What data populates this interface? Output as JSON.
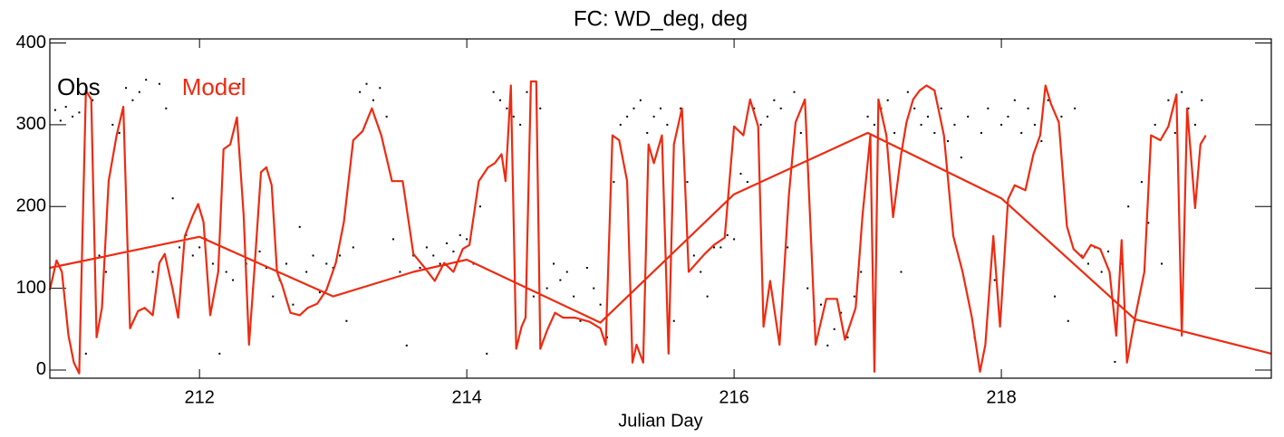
{
  "chart_data": {
    "type": "line",
    "title": "FC: WD_deg, deg",
    "x_label": "Julian Day",
    "xlim": [
      210.88,
      220.02
    ],
    "ylim": [
      -10,
      405
    ],
    "xticks": [
      212,
      214,
      216,
      218
    ],
    "yticks": [
      0,
      100,
      200,
      300,
      400
    ],
    "legend": "upper left",
    "series": [
      {
        "name": "Obs",
        "type": "scatter",
        "color": "#000000",
        "x": [
          210.92,
          210.96,
          211.0,
          211.05,
          211.1,
          211.15,
          211.2,
          211.25,
          211.3,
          211.35,
          211.4,
          211.45,
          211.5,
          211.55,
          211.6,
          211.65,
          211.7,
          211.75,
          211.8,
          211.85,
          211.9,
          211.95,
          212.0,
          212.05,
          212.1,
          212.15,
          212.2,
          212.25,
          212.3,
          212.35,
          212.4,
          212.45,
          212.5,
          212.55,
          212.6,
          212.65,
          212.7,
          212.75,
          212.8,
          212.85,
          212.9,
          212.95,
          213.0,
          213.05,
          213.1,
          213.15,
          213.2,
          213.25,
          213.3,
          213.35,
          213.4,
          213.45,
          213.5,
          213.55,
          213.6,
          213.65,
          213.7,
          213.75,
          213.8,
          213.85,
          213.9,
          213.95,
          214.0,
          214.05,
          214.1,
          214.15,
          214.2,
          214.25,
          214.3,
          214.35,
          214.4,
          214.45,
          214.5,
          214.55,
          214.6,
          214.65,
          214.7,
          214.75,
          214.8,
          214.85,
          214.9,
          214.95,
          215.0,
          215.05,
          215.1,
          215.15,
          215.2,
          215.25,
          215.3,
          215.35,
          215.4,
          215.45,
          215.5,
          215.55,
          215.6,
          215.65,
          215.7,
          215.75,
          215.8,
          215.85,
          215.9,
          215.95,
          216.0,
          216.05,
          216.1,
          216.15,
          216.2,
          216.25,
          216.3,
          216.35,
          216.4,
          216.45,
          216.5,
          216.55,
          216.6,
          216.65,
          216.7,
          216.75,
          216.8,
          216.85,
          216.9,
          216.95,
          217.0,
          217.05,
          217.1,
          217.15,
          217.2,
          217.25,
          217.3,
          217.35,
          217.4,
          217.45,
          217.5,
          217.55,
          217.6,
          217.65,
          217.7,
          217.75,
          217.8,
          217.85,
          217.9,
          217.95,
          218.0,
          218.05,
          218.1,
          218.15,
          218.2,
          218.25,
          218.3,
          218.35,
          218.4,
          218.45,
          218.5,
          218.55,
          218.6,
          218.65,
          218.7,
          218.75,
          218.8,
          218.85,
          218.9,
          218.95,
          219.0,
          219.05,
          219.1,
          219.15,
          219.2,
          219.25,
          219.3,
          219.35,
          219.4,
          219.45,
          219.5
        ],
        "values": [
          318,
          305,
          322,
          310,
          315,
          20,
          330,
          140,
          120,
          300,
          290,
          345,
          330,
          340,
          355,
          120,
          350,
          320,
          210,
          150,
          165,
          140,
          150,
          160,
          130,
          20,
          120,
          110,
          350,
          130,
          100,
          145,
          125,
          90,
          110,
          130,
          80,
          175,
          120,
          140,
          95,
          130,
          125,
          140,
          60,
          150,
          340,
          350,
          330,
          345,
          310,
          160,
          120,
          30,
          140,
          125,
          150,
          140,
          130,
          155,
          145,
          165,
          160,
          130,
          200,
          20,
          340,
          330,
          320,
          310,
          300,
          340,
          90,
          320,
          100,
          130,
          110,
          120,
          90,
          60,
          125,
          100,
          80,
          40,
          230,
          300,
          310,
          320,
          330,
          290,
          310,
          320,
          300,
          60,
          320,
          230,
          140,
          120,
          90,
          150,
          150,
          165,
          160,
          240,
          230,
          320,
          300,
          310,
          330,
          320,
          150,
          340,
          290,
          100,
          60,
          80,
          30,
          50,
          70,
          40,
          90,
          120,
          310,
          300,
          320,
          330,
          290,
          120,
          340,
          320,
          300,
          310,
          290,
          320,
          280,
          300,
          260,
          310,
          40,
          290,
          320,
          110,
          300,
          310,
          330,
          290,
          320,
          300,
          280,
          330,
          90,
          310,
          60,
          320,
          140,
          130,
          150,
          120,
          145,
          10,
          130,
          200,
          60,
          230,
          180,
          300,
          130,
          330,
          290,
          340,
          320,
          300,
          330
        ]
      },
      {
        "name": "Model",
        "type": "line",
        "color": "#ee2a10",
        "x": [
          210.88,
          210.93,
          210.97,
          211.02,
          211.06,
          211.1,
          211.15,
          211.19,
          211.23,
          211.27,
          211.32,
          211.38,
          211.43,
          211.48,
          211.54,
          211.59,
          211.65,
          211.7,
          211.74,
          211.8,
          211.84,
          211.89,
          211.95,
          211.99,
          212.03,
          212.08,
          212.14,
          212.18,
          212.23,
          212.28,
          212.33,
          212.37,
          212.41,
          212.46,
          212.5,
          212.54,
          212.58,
          212.62,
          212.68,
          212.75,
          212.81,
          212.88,
          212.95,
          213.02,
          213.08,
          213.15,
          213.22,
          213.29,
          213.36,
          213.44,
          213.52,
          213.6,
          213.68,
          213.76,
          213.83,
          213.9,
          213.97,
          214.02,
          214.09,
          214.16,
          214.21,
          214.26,
          214.29,
          214.33,
          214.37,
          214.41,
          214.44,
          214.48,
          214.52,
          214.55,
          214.6,
          214.66,
          214.72,
          214.81,
          214.92,
          215.0,
          215.04,
          215.09,
          215.14,
          215.2,
          215.24,
          215.27,
          215.32,
          215.36,
          215.4,
          215.46,
          215.51,
          215.55,
          215.61,
          215.66,
          215.72,
          215.78,
          215.85,
          215.93,
          216.0,
          216.07,
          216.12,
          216.18,
          216.22,
          216.27,
          216.34,
          216.41,
          216.46,
          216.53,
          216.61,
          216.69,
          216.77,
          216.83,
          216.91,
          216.96,
          217.02,
          217.05,
          217.08,
          217.14,
          217.19,
          217.25,
          217.29,
          217.34,
          217.39,
          217.44,
          217.5,
          217.57,
          217.64,
          217.71,
          217.78,
          217.84,
          217.88,
          217.94,
          217.99,
          218.05,
          218.1,
          218.18,
          218.24,
          218.29,
          218.33,
          218.37,
          218.43,
          218.49,
          218.54,
          218.61,
          218.67,
          218.74,
          218.81,
          218.86,
          218.9,
          218.94,
          219.0,
          219.07,
          219.12,
          219.19,
          219.25,
          219.31,
          219.35,
          219.39,
          219.45,
          219.49,
          219.53,
          null,
          210.88,
          212.0,
          213.0,
          213.6,
          214.0,
          215.0,
          216.0,
          217.0,
          218.0,
          219.0,
          220.02
        ],
        "values": [
          98,
          134,
          120,
          42,
          9,
          -4,
          342,
          331,
          40,
          76,
          231,
          287,
          322,
          51,
          72,
          76,
          67,
          131,
          142,
          98,
          64,
          164,
          189,
          203,
          181,
          67,
          120,
          270,
          276,
          309,
          189,
          31,
          120,
          242,
          248,
          226,
          120,
          103,
          70,
          67,
          76,
          81,
          98,
          131,
          181,
          281,
          292,
          320,
          287,
          231,
          231,
          142,
          126,
          109,
          131,
          120,
          148,
          153,
          231,
          248,
          253,
          264,
          231,
          348,
          26,
          53,
          64,
          353,
          353,
          26,
          48,
          70,
          64,
          64,
          59,
          51,
          31,
          287,
          281,
          231,
          9,
          31,
          9,
          276,
          253,
          287,
          20,
          276,
          320,
          120,
          131,
          142,
          153,
          162,
          298,
          287,
          331,
          298,
          53,
          109,
          31,
          214,
          303,
          331,
          31,
          87,
          87,
          37,
          76,
          187,
          287,
          -2,
          331,
          287,
          187,
          264,
          303,
          331,
          342,
          348,
          342,
          287,
          164,
          120,
          64,
          -2,
          31,
          164,
          53,
          209,
          226,
          220,
          264,
          287,
          348,
          326,
          303,
          176,
          148,
          137,
          153,
          148,
          120,
          42,
          159,
          9,
          64,
          120,
          287,
          281,
          298,
          337,
          42,
          320,
          198,
          276,
          287,
          null,
          125,
          163,
          90,
          120,
          135,
          58,
          215,
          290,
          210,
          62,
          20
        ]
      }
    ]
  }
}
